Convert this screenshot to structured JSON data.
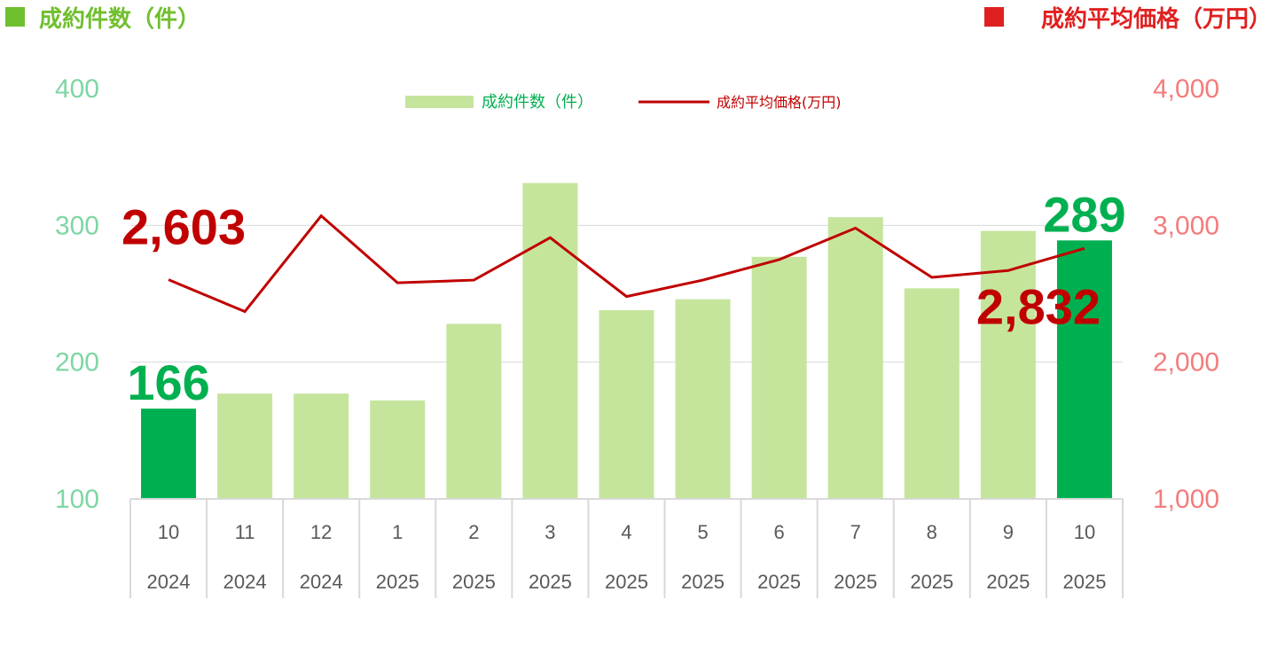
{
  "header": {
    "left_title": "成約件数（件）",
    "right_title": "成約平均価格（万円）"
  },
  "colors": {
    "bar_light": "#c5e59d",
    "bar_highlight": "#00b050",
    "line": "#c00000",
    "left_marker": "#70bf2e",
    "right_marker": "#e02020",
    "left_axis_text": "#7fd6a4",
    "right_axis_text": "#f47c7c",
    "grid": "#d9d9d9"
  },
  "chart_data": {
    "type": "bar",
    "categories": [
      {
        "month": "10",
        "year": "2024"
      },
      {
        "month": "11",
        "year": "2024"
      },
      {
        "month": "12",
        "year": "2024"
      },
      {
        "month": "1",
        "year": "2025"
      },
      {
        "month": "2",
        "year": "2025"
      },
      {
        "month": "3",
        "year": "2025"
      },
      {
        "month": "4",
        "year": "2025"
      },
      {
        "month": "5",
        "year": "2025"
      },
      {
        "month": "6",
        "year": "2025"
      },
      {
        "month": "7",
        "year": "2025"
      },
      {
        "month": "8",
        "year": "2025"
      },
      {
        "month": "9",
        "year": "2025"
      },
      {
        "month": "10",
        "year": "2025"
      }
    ],
    "series": [
      {
        "name": "成約件数（件）",
        "type": "bar",
        "axis": "left",
        "values": [
          166,
          177,
          177,
          172,
          228,
          331,
          238,
          246,
          277,
          306,
          254,
          296,
          289
        ],
        "highlight": [
          true,
          false,
          false,
          false,
          false,
          false,
          false,
          false,
          false,
          false,
          false,
          false,
          true
        ]
      },
      {
        "name": "成約平均価格(万円)",
        "type": "line",
        "axis": "right",
        "values": [
          2603,
          2370,
          3070,
          2580,
          2600,
          2910,
          2480,
          2600,
          2750,
          2980,
          2620,
          2670,
          2832
        ]
      }
    ],
    "left_axis": {
      "ylim": [
        100,
        400
      ],
      "ticks": [
        "100",
        "200",
        "300",
        "400"
      ]
    },
    "right_axis": {
      "ylim": [
        1000,
        4000
      ],
      "ticks": [
        "1,000",
        "2,000",
        "3,000",
        "4,000"
      ]
    },
    "annotations": [
      {
        "text": "166",
        "series": 0,
        "index": 0
      },
      {
        "text": "289",
        "series": 0,
        "index": 12
      },
      {
        "text": "2,603",
        "series": 1,
        "index": 0
      },
      {
        "text": "2,832",
        "series": 1,
        "index": 12
      }
    ],
    "grid": true,
    "legend": "top-center"
  }
}
